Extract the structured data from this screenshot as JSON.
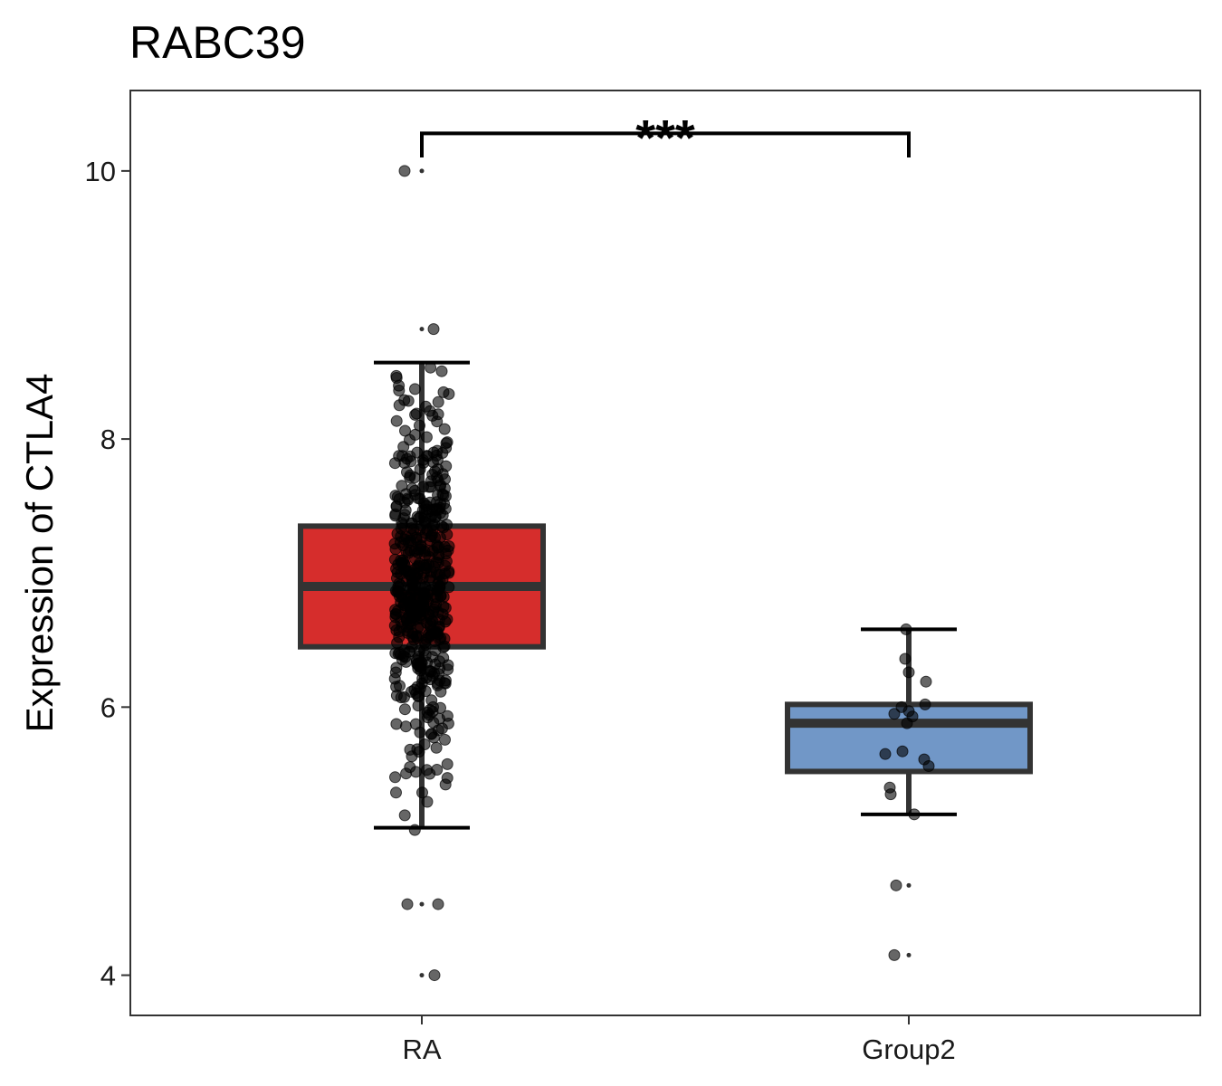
{
  "chart_data": {
    "type": "box",
    "title": "RABC39",
    "xlabel": "",
    "ylabel": "Expression of CTLA4",
    "ylim": [
      3.7,
      10.6
    ],
    "yticks": [
      4,
      6,
      8,
      10
    ],
    "categories": [
      "RA",
      "Group2"
    ],
    "boxes": [
      {
        "name": "RA",
        "color": "#D62D2C",
        "q1": 6.45,
        "median": 6.9,
        "q3": 7.35,
        "whisker_low": 5.1,
        "whisker_high": 8.57,
        "outliers": [
          10.0,
          8.82,
          4.53,
          4.0
        ],
        "n_points_approx": 500
      },
      {
        "name": "Group2",
        "color": "#7197C7",
        "q1": 5.52,
        "median": 5.88,
        "q3": 6.02,
        "whisker_low": 5.2,
        "whisker_high": 6.58,
        "outliers": [
          4.67,
          4.15
        ],
        "points": [
          6.58,
          6.36,
          6.26,
          6.19,
          6.02,
          6.0,
          5.97,
          5.95,
          5.93,
          5.88,
          5.67,
          5.65,
          5.61,
          5.56,
          5.4,
          5.35,
          5.2,
          4.67,
          4.15
        ]
      }
    ],
    "significance": {
      "label": "***",
      "between": [
        "RA",
        "Group2"
      ],
      "y": 10.28
    }
  }
}
